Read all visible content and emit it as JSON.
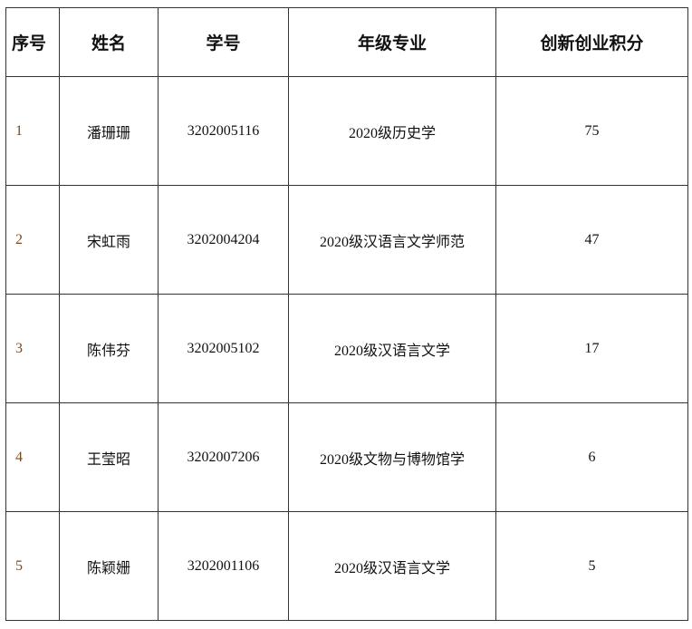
{
  "table": {
    "headers": [
      "序号",
      "姓名",
      "学号",
      "年级专业",
      "创新创业积分"
    ],
    "rows": [
      [
        "1",
        "潘珊珊",
        "3202005116",
        "2020级历史学",
        "75"
      ],
      [
        "2",
        "宋虹雨",
        "3202004204",
        "2020级汉语言文学师范",
        "47"
      ],
      [
        "3",
        "陈伟芬",
        "3202005102",
        "2020级汉语言文学",
        "17"
      ],
      [
        "4",
        "王莹昭",
        "3202007206",
        "2020级文物与博物馆学",
        "6"
      ],
      [
        "5",
        "陈颖姗",
        "3202001106",
        "2020级汉语言文学",
        "5"
      ]
    ]
  }
}
